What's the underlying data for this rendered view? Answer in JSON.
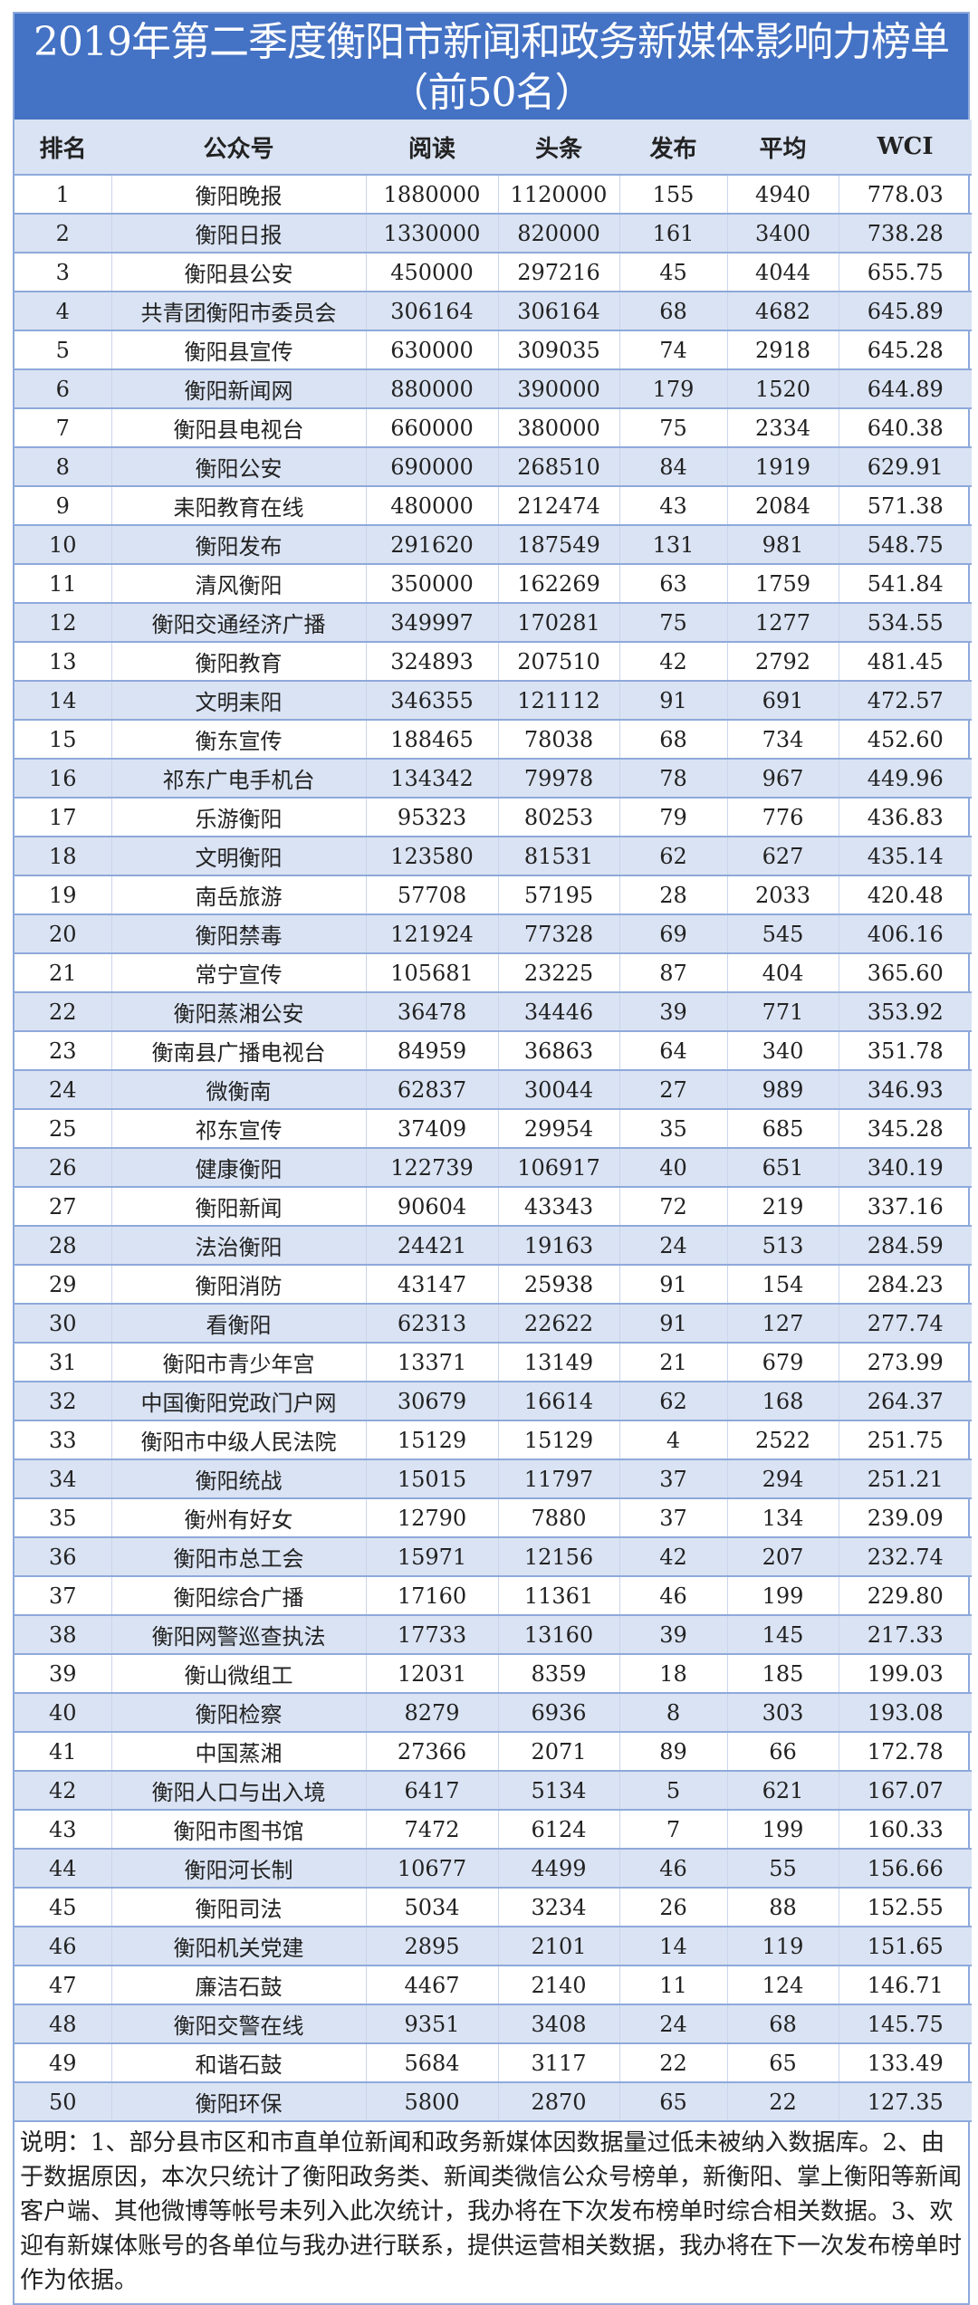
{
  "title_line1": "2019年第二季度衡阳市新闻和政务新媒体影响力榜单",
  "title_line2": "（前50名）",
  "columns": [
    "排名",
    "公众号",
    "阅读",
    "头条",
    "发布",
    "平均",
    "WCI"
  ],
  "rows": [
    [
      "1",
      "衡阳晚报",
      "1880000",
      "1120000",
      "155",
      "4940",
      "778.03"
    ],
    [
      "2",
      "衡阳日报",
      "1330000",
      "820000",
      "161",
      "3400",
      "738.28"
    ],
    [
      "3",
      "衡阳县公安",
      "450000",
      "297216",
      "45",
      "4044",
      "655.75"
    ],
    [
      "4",
      "共青团衡阳市委员会",
      "306164",
      "306164",
      "68",
      "4682",
      "645.89"
    ],
    [
      "5",
      "衡阳县宣传",
      "630000",
      "309035",
      "74",
      "2918",
      "645.28"
    ],
    [
      "6",
      "衡阳新闻网",
      "880000",
      "390000",
      "179",
      "1520",
      "644.89"
    ],
    [
      "7",
      "衡阳县电视台",
      "660000",
      "380000",
      "75",
      "2334",
      "640.38"
    ],
    [
      "8",
      "衡阳公安",
      "690000",
      "268510",
      "84",
      "1919",
      "629.91"
    ],
    [
      "9",
      "耒阳教育在线",
      "480000",
      "212474",
      "43",
      "2084",
      "571.38"
    ],
    [
      "10",
      "衡阳发布",
      "291620",
      "187549",
      "131",
      "981",
      "548.75"
    ],
    [
      "11",
      "清风衡阳",
      "350000",
      "162269",
      "63",
      "1759",
      "541.84"
    ],
    [
      "12",
      "衡阳交通经济广播",
      "349997",
      "170281",
      "75",
      "1277",
      "534.55"
    ],
    [
      "13",
      "衡阳教育",
      "324893",
      "207510",
      "42",
      "2792",
      "481.45"
    ],
    [
      "14",
      "文明耒阳",
      "346355",
      "121112",
      "91",
      "691",
      "472.57"
    ],
    [
      "15",
      "衡东宣传",
      "188465",
      "78038",
      "68",
      "734",
      "452.60"
    ],
    [
      "16",
      "祁东广电手机台",
      "134342",
      "79978",
      "78",
      "967",
      "449.96"
    ],
    [
      "17",
      "乐游衡阳",
      "95323",
      "80253",
      "79",
      "776",
      "436.83"
    ],
    [
      "18",
      "文明衡阳",
      "123580",
      "81531",
      "62",
      "627",
      "435.14"
    ],
    [
      "19",
      "南岳旅游",
      "57708",
      "57195",
      "28",
      "2033",
      "420.48"
    ],
    [
      "20",
      "衡阳禁毒",
      "121924",
      "77328",
      "69",
      "545",
      "406.16"
    ],
    [
      "21",
      "常宁宣传",
      "105681",
      "23225",
      "87",
      "404",
      "365.60"
    ],
    [
      "22",
      "衡阳蒸湘公安",
      "36478",
      "34446",
      "39",
      "771",
      "353.92"
    ],
    [
      "23",
      "衡南县广播电视台",
      "84959",
      "36863",
      "64",
      "340",
      "351.78"
    ],
    [
      "24",
      "微衡南",
      "62837",
      "30044",
      "27",
      "989",
      "346.93"
    ],
    [
      "25",
      "祁东宣传",
      "37409",
      "29954",
      "35",
      "685",
      "345.28"
    ],
    [
      "26",
      "健康衡阳",
      "122739",
      "106917",
      "40",
      "651",
      "340.19"
    ],
    [
      "27",
      "衡阳新闻",
      "90604",
      "43343",
      "72",
      "219",
      "337.16"
    ],
    [
      "28",
      "法治衡阳",
      "24421",
      "19163",
      "24",
      "513",
      "284.59"
    ],
    [
      "29",
      "衡阳消防",
      "43147",
      "25938",
      "91",
      "154",
      "284.23"
    ],
    [
      "30",
      "看衡阳",
      "62313",
      "22622",
      "91",
      "127",
      "277.74"
    ],
    [
      "31",
      "衡阳市青少年宫",
      "13371",
      "13149",
      "21",
      "679",
      "273.99"
    ],
    [
      "32",
      "中国衡阳党政门户网",
      "30679",
      "16614",
      "62",
      "168",
      "264.37"
    ],
    [
      "33",
      "衡阳市中级人民法院",
      "15129",
      "15129",
      "4",
      "2522",
      "251.75"
    ],
    [
      "34",
      "衡阳统战",
      "15015",
      "11797",
      "37",
      "294",
      "251.21"
    ],
    [
      "35",
      "衡州有好女",
      "12790",
      "7880",
      "37",
      "134",
      "239.09"
    ],
    [
      "36",
      "衡阳市总工会",
      "15971",
      "12156",
      "42",
      "207",
      "232.74"
    ],
    [
      "37",
      "衡阳综合广播",
      "17160",
      "11361",
      "46",
      "199",
      "229.80"
    ],
    [
      "38",
      "衡阳网警巡查执法",
      "17733",
      "13160",
      "39",
      "145",
      "217.33"
    ],
    [
      "39",
      "衡山微组工",
      "12031",
      "8359",
      "18",
      "185",
      "199.03"
    ],
    [
      "40",
      "衡阳检察",
      "8279",
      "6936",
      "8",
      "303",
      "193.08"
    ],
    [
      "41",
      "中国蒸湘",
      "27366",
      "2071",
      "89",
      "66",
      "172.78"
    ],
    [
      "42",
      "衡阳人口与出入境",
      "6417",
      "5134",
      "5",
      "621",
      "167.07"
    ],
    [
      "43",
      "衡阳市图书馆",
      "7472",
      "6124",
      "7",
      "199",
      "160.33"
    ],
    [
      "44",
      "衡阳河长制",
      "10677",
      "4499",
      "46",
      "55",
      "156.66"
    ],
    [
      "45",
      "衡阳司法",
      "5034",
      "3234",
      "26",
      "88",
      "152.55"
    ],
    [
      "46",
      "衡阳机关党建",
      "2895",
      "2101",
      "14",
      "119",
      "151.65"
    ],
    [
      "47",
      "廉洁石鼓",
      "4467",
      "2140",
      "11",
      "124",
      "146.71"
    ],
    [
      "48",
      "衡阳交警在线",
      "9351",
      "3408",
      "24",
      "68",
      "145.75"
    ],
    [
      "49",
      "和谐石鼓",
      "5684",
      "3117",
      "22",
      "65",
      "133.49"
    ],
    [
      "50",
      "衡阳环保",
      "5800",
      "2870",
      "65",
      "22",
      "127.35"
    ]
  ],
  "note": "说明：1、部分县市区和市直单位新闻和政务新媒体因数据量过低未被纳入数据库。2、由于数据原因，本次只统计了衡阳政务类、新闻类微信公众号榜单，新衡阳、掌上衡阳等新闻客户端、其他微博等帐号未列入此次统计，我办将在下次发布榜单时综合相关数据。3、欢迎有新媒体账号的各单位与我办进行联系，提供运营相关数据，我办将在下一次发布榜单时作为依据。",
  "colors": {
    "title_bg": "#4472c4",
    "stripe": "#dae3f3",
    "border": "#8ea9db"
  }
}
